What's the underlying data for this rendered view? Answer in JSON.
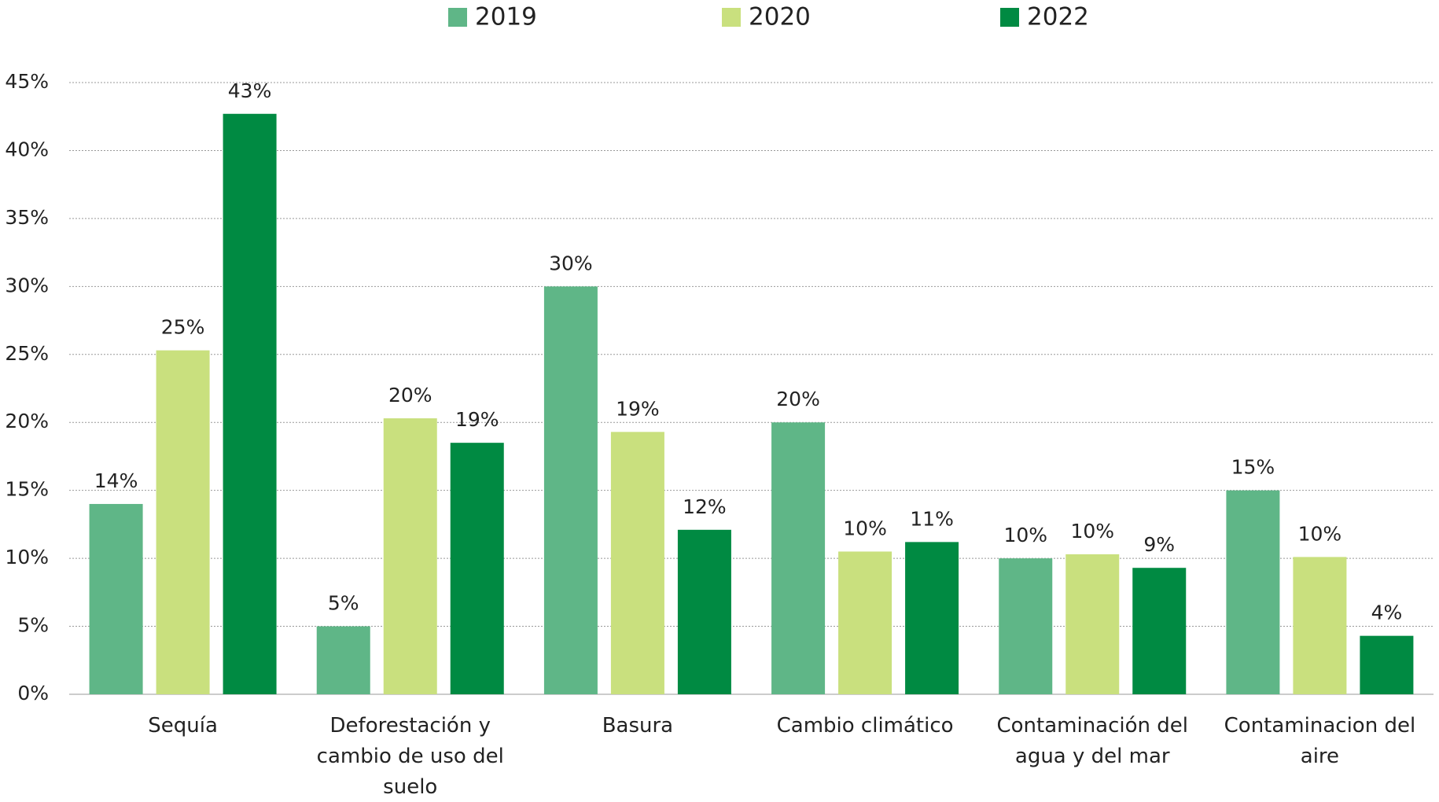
{
  "chart_data": {
    "type": "bar",
    "categories": [
      "Sequía",
      "Deforestación y cambio de uso del suelo",
      "Basura",
      "Cambio climático",
      "Contaminación del agua y del mar",
      "Contaminacion del aire"
    ],
    "series": [
      {
        "name": "2019",
        "color": "#5fb687",
        "values": [
          14,
          5,
          30,
          20,
          10,
          15
        ],
        "value_labels": [
          "14%",
          "5%",
          "30%",
          "20%",
          "10%",
          "15%"
        ]
      },
      {
        "name": "2020",
        "color": "#c9e07e",
        "values": [
          25.3,
          20.3,
          19.3,
          10.5,
          10.3,
          10.1
        ],
        "value_labels": [
          "25%",
          "20%",
          "19%",
          "10%",
          "10%",
          "10%"
        ]
      },
      {
        "name": "2022",
        "color": "#008a42",
        "values": [
          42.7,
          18.5,
          12.1,
          11.2,
          9.3,
          4.3
        ],
        "value_labels": [
          "43%",
          "19%",
          "12%",
          "11%",
          "9%",
          "4%"
        ]
      }
    ],
    "ylim": [
      0,
      45
    ],
    "yticks": [
      {
        "value": 0,
        "label": "0%"
      },
      {
        "value": 5,
        "label": "5%"
      },
      {
        "value": 10,
        "label": "10%"
      },
      {
        "value": 15,
        "label": "15%"
      },
      {
        "value": 20,
        "label": "20%"
      },
      {
        "value": 25,
        "label": "25%"
      },
      {
        "value": 30,
        "label": "30%"
      },
      {
        "value": 35,
        "label": "35%"
      },
      {
        "value": 40,
        "label": "40%"
      },
      {
        "value": 45,
        "label": "45%"
      }
    ],
    "grid": true,
    "legend": "top"
  }
}
